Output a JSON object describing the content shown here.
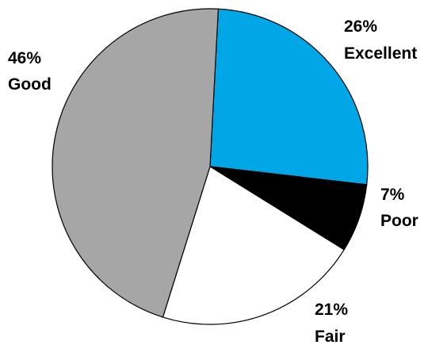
{
  "chart_data": {
    "type": "pie",
    "slices": [
      {
        "label": "Excellent",
        "value": 26,
        "percent_label": "26%",
        "color": "#00a6e6"
      },
      {
        "label": "Poor",
        "value": 7,
        "percent_label": "7%",
        "color": "#000000"
      },
      {
        "label": "Fair",
        "value": 21,
        "percent_label": "21%",
        "color": "#ffffff"
      },
      {
        "label": "Good",
        "value": 46,
        "percent_label": "46%",
        "color": "#a6a6a6"
      }
    ],
    "title": "",
    "legend": "none",
    "start_angle_deg": 3.0,
    "direction": "clockwise"
  }
}
